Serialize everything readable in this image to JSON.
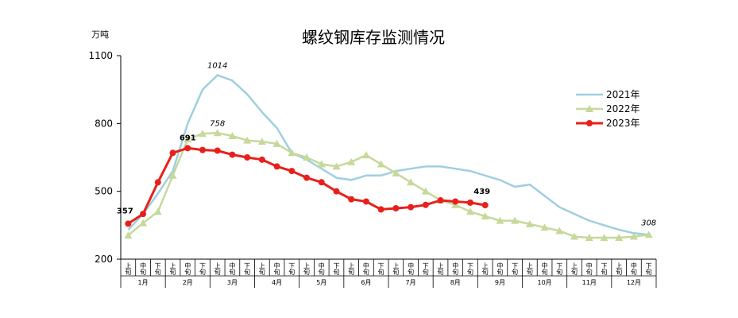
{
  "chart_data": {
    "type": "line",
    "title": "螺纹钢库存监测情况",
    "ylabel": "万吨",
    "ylim": [
      200,
      1100
    ],
    "yticks": [
      "200",
      "500",
      "800",
      "1100"
    ],
    "period_labels": [
      "上旬",
      "中旬",
      "下旬"
    ],
    "months": [
      "1月",
      "2月",
      "3月",
      "4月",
      "5月",
      "6月",
      "7月",
      "8月",
      "9月",
      "10月",
      "11月",
      "12月"
    ],
    "legend_position": "right",
    "grid": false,
    "series": [
      {
        "name": "2021年",
        "color": "#9fcfe0",
        "marker": "none",
        "values": [
          330,
          400,
          490,
          590,
          800,
          950,
          1014,
          990,
          930,
          850,
          780,
          670,
          640,
          600,
          560,
          550,
          570,
          570,
          590,
          600,
          610,
          610,
          600,
          590,
          570,
          550,
          520,
          530,
          480,
          430,
          400,
          370,
          350,
          330,
          315,
          308
        ]
      },
      {
        "name": "2022年",
        "color": "#c6d99a",
        "marker": "triangle",
        "values": [
          305,
          360,
          410,
          570,
          730,
          755,
          758,
          745,
          725,
          720,
          710,
          670,
          650,
          620,
          610,
          630,
          660,
          620,
          580,
          540,
          500,
          460,
          440,
          410,
          390,
          370,
          370,
          355,
          340,
          325,
          300,
          295,
          295,
          295,
          300,
          308
        ]
      },
      {
        "name": "2023年",
        "color": "#e8201c",
        "marker": "circle",
        "values": [
          357,
          400,
          540,
          670,
          691,
          683,
          680,
          662,
          650,
          640,
          610,
          590,
          560,
          540,
          500,
          465,
          455,
          420,
          425,
          430,
          440,
          460,
          455,
          450,
          439
        ]
      }
    ],
    "annotations": [
      {
        "series": "2021年",
        "index": 6,
        "text": "1014"
      },
      {
        "series": "2022年",
        "index": 6,
        "text": "758"
      },
      {
        "series": "2022年",
        "index": 35,
        "text": "308"
      },
      {
        "series": "2023年",
        "index": 0,
        "text": "357"
      },
      {
        "series": "2023年",
        "index": 4,
        "text": "691"
      },
      {
        "series": "2023年",
        "index": 24,
        "text": "439"
      }
    ]
  }
}
